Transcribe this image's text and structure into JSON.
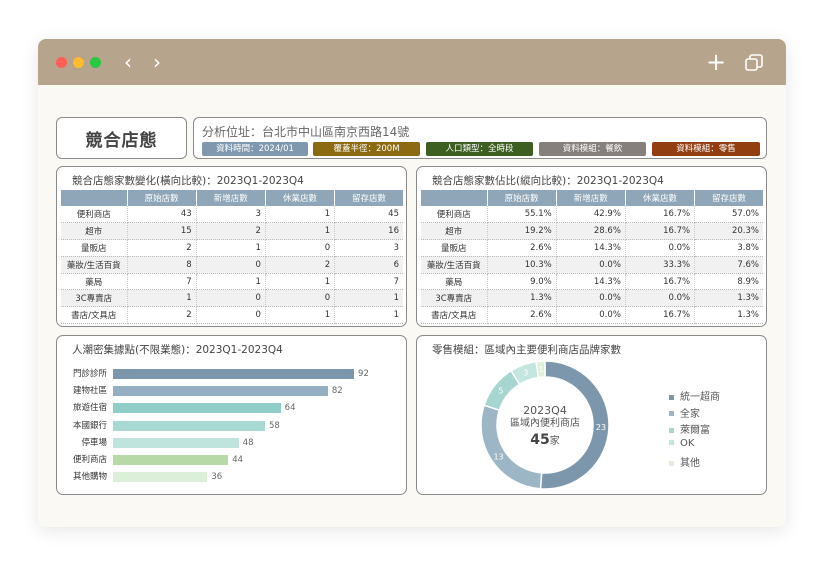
{
  "header": {
    "title": "競合店態",
    "address": "分析位址：台北市中山區南京西路14號",
    "tags": [
      {
        "label": "資料時間：2024/01",
        "color": "#7f98ae"
      },
      {
        "label": "覆蓋半徑：200M",
        "color": "#8b6a12"
      },
      {
        "label": "人口類型：全時段",
        "color": "#3d5f22"
      },
      {
        "label": "資料模組：餐飲",
        "color": "#85807b"
      },
      {
        "label": "資料模組：零售",
        "color": "#923e10"
      }
    ]
  },
  "table1": {
    "title": "競合店態家數變化(橫向比較)：2023Q1-2023Q4",
    "headers": [
      "",
      "原始店數",
      "新增店數",
      "休業店數",
      "留存店數"
    ],
    "rows": [
      [
        "便利商店",
        "43",
        "3",
        "1",
        "45"
      ],
      [
        "超市",
        "15",
        "2",
        "1",
        "16"
      ],
      [
        "量販店",
        "2",
        "1",
        "0",
        "3"
      ],
      [
        "藥妝/生活百貨",
        "8",
        "0",
        "2",
        "6"
      ],
      [
        "藥局",
        "7",
        "1",
        "1",
        "7"
      ],
      [
        "3C專賣店",
        "1",
        "0",
        "0",
        "1"
      ],
      [
        "書店/文具店",
        "2",
        "0",
        "1",
        "1"
      ]
    ]
  },
  "table2": {
    "title": "競合店態家數佔比(縱向比較)：2023Q1-2023Q4",
    "headers": [
      "",
      "原始店數",
      "新增店數",
      "休業店數",
      "留存店數"
    ],
    "rows": [
      [
        "便利商店",
        "55.1%",
        "42.9%",
        "16.7%",
        "57.0%"
      ],
      [
        "超市",
        "19.2%",
        "28.6%",
        "16.7%",
        "20.3%"
      ],
      [
        "量販店",
        "2.6%",
        "14.3%",
        "0.0%",
        "3.8%"
      ],
      [
        "藥妝/生活百貨",
        "10.3%",
        "0.0%",
        "33.3%",
        "7.6%"
      ],
      [
        "藥局",
        "9.0%",
        "14.3%",
        "16.7%",
        "8.9%"
      ],
      [
        "3C專賣店",
        "1.3%",
        "0.0%",
        "0.0%",
        "1.3%"
      ],
      [
        "書店/文具店",
        "2.6%",
        "0.0%",
        "16.7%",
        "1.3%"
      ]
    ]
  },
  "chart_data": [
    {
      "type": "bar",
      "orientation": "horizontal",
      "title": "人潮密集據點(不限業態)：2023Q1-2023Q4",
      "categories": [
        "門診診所",
        "建物社區",
        "旅遊住宿",
        "本國銀行",
        "停車場",
        "便利商店",
        "其他購物"
      ],
      "values": [
        92,
        82,
        64,
        58,
        48,
        44,
        36
      ],
      "colors": [
        "#7c97ac",
        "#94afc2",
        "#8ecdc8",
        "#a9d9d3",
        "#bfe3dd",
        "#b7d9a8",
        "#dcefd8"
      ],
      "xlim": [
        0,
        100
      ]
    },
    {
      "type": "pie",
      "donut": true,
      "title": "零售模組：區域內主要便利商店品牌家數",
      "center_label": {
        "line1": "2023Q4",
        "line2": "區域內便利商店",
        "total": "45",
        "unit": "家"
      },
      "labels": [
        "統一超商",
        "全家",
        "萊爾富",
        "OK",
        "其他"
      ],
      "values": [
        23,
        13,
        5,
        3,
        1
      ],
      "colors": [
        "#7c97ac",
        "#9cb6c6",
        "#a7d6d0",
        "#c3e6e0",
        "#dff0d9"
      ],
      "legend": "right"
    }
  ]
}
